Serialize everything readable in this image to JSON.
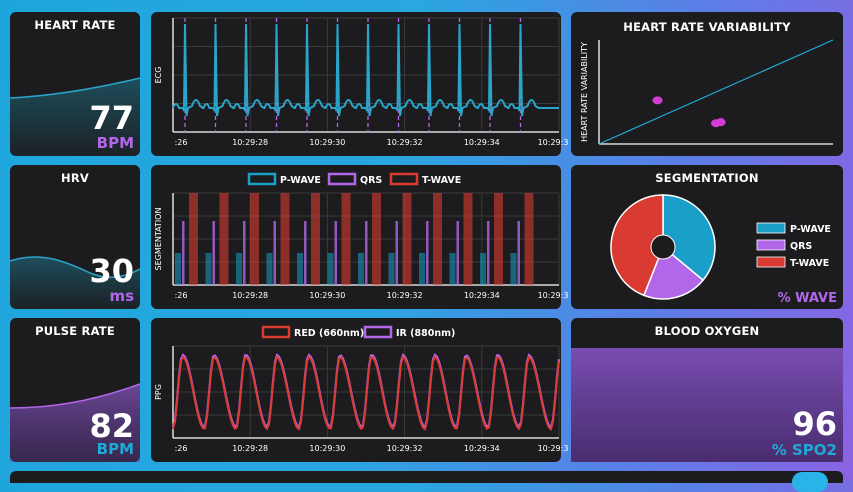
{
  "colors": {
    "ecg": "#2aa5c9",
    "pwave": "#1a9fc8",
    "qrs": "#b266e8",
    "twave": "#d93a31",
    "red": "#d93a31",
    "ir": "#b266e8",
    "hrvscatter": "#d63bd6",
    "purple": "#b266e8",
    "cyan": "#1fa9d6"
  },
  "heart_rate": {
    "title": "HEART RATE",
    "value": "77",
    "unit": "BPM"
  },
  "hrv": {
    "title": "HRV",
    "value": "30",
    "unit": "ms"
  },
  "pulse_rate": {
    "title": "PULSE RATE",
    "value": "82",
    "unit": "BPM"
  },
  "blood_oxygen": {
    "title": "BLOOD OXYGEN",
    "value": "96",
    "unit": "% SPO2"
  },
  "ecg_chart": {
    "ylabel": "ECG",
    "ticks": [
      ":26",
      "10:29:28",
      "10:29:30",
      "10:29:32",
      "10:29:34",
      "10:29:3"
    ]
  },
  "seg_chart": {
    "ylabel": "SEGMENTATION",
    "legend": [
      "P-WAVE",
      "QRS",
      "T-WAVE"
    ],
    "ticks": [
      ":26",
      "10:29:28",
      "10:29:30",
      "10:29:32",
      "10:29:34",
      "10:29:3"
    ]
  },
  "ppg_chart": {
    "ylabel": "PPG",
    "legend": [
      "RED (660nm)",
      "IR (880nm)"
    ],
    "ticks": [
      ":26",
      "10:29:28",
      "10:29:30",
      "10:29:32",
      "10:29:34",
      "10:29:3"
    ]
  },
  "hrv_chart": {
    "title": "HEART RATE VARIABILITY",
    "ylabel": "HEART RATE VARIABILITY"
  },
  "segmentation_pie": {
    "title": "SEGMENTATION",
    "legend": [
      "P-WAVE",
      "QRS",
      "T-WAVE"
    ],
    "footer": "% WAVE"
  },
  "chart_data": [
    {
      "type": "pie",
      "title": "SEGMENTATION",
      "categories": [
        "P-WAVE",
        "QRS",
        "T-WAVE"
      ],
      "values": [
        36,
        20,
        44
      ]
    },
    {
      "type": "scatter",
      "title": "HEART RATE VARIABILITY",
      "series": [
        {
          "values": [
            [
              0.25,
              0.42
            ],
            [
              0.5,
              0.2
            ],
            [
              0.52,
              0.21
            ]
          ]
        }
      ]
    }
  ]
}
